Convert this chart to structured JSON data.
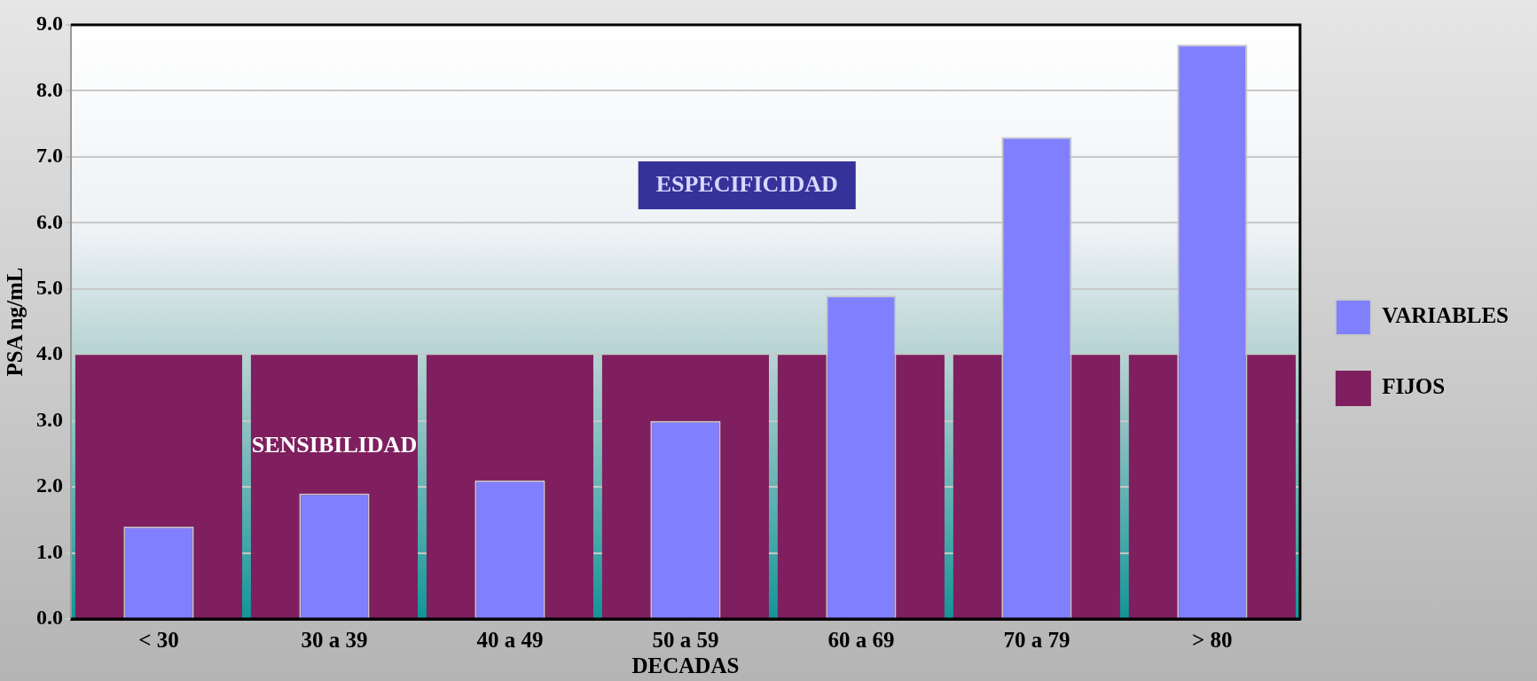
{
  "chart_data": {
    "type": "bar",
    "xlabel": "DECADAS",
    "ylabel": "PSA ng/mL",
    "categories": [
      "< 30",
      "30 a 39",
      "40 a 49",
      "50 a 59",
      "60 a 69",
      "70 a 79",
      "> 80"
    ],
    "series": [
      {
        "name": "FIJOS",
        "color": "#7f1f5f",
        "values": [
          4.0,
          4.0,
          4.0,
          4.0,
          4.0,
          4.0,
          4.0
        ]
      },
      {
        "name": "VARIABLES",
        "color": "#8080ff",
        "values": [
          1.4,
          1.9,
          2.1,
          3.0,
          4.9,
          7.3,
          8.7
        ]
      }
    ],
    "ylim": [
      0,
      9
    ],
    "yticks": [
      {
        "value": 0,
        "label": "0.0"
      },
      {
        "value": 1,
        "label": "1.0"
      },
      {
        "value": 2,
        "label": "2.0"
      },
      {
        "value": 3,
        "label": "3.0"
      },
      {
        "value": 4,
        "label": "4.0"
      },
      {
        "value": 5,
        "label": "5.0"
      },
      {
        "value": 6,
        "label": "6.0"
      },
      {
        "value": 7,
        "label": "7.0"
      },
      {
        "value": 8,
        "label": "8.0"
      },
      {
        "value": 9,
        "label": "9.0"
      }
    ],
    "grid": "y",
    "legend": "right",
    "annotations": [
      "SENSIBILIDAD",
      "ESPECIFICIDAD"
    ]
  }
}
